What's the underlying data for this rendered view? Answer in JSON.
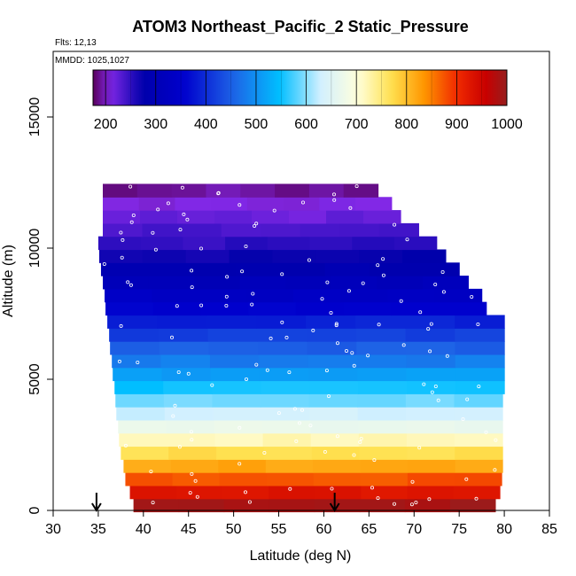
{
  "chart_data": {
    "type": "heatmap",
    "title": "ATOM3 Northeast_Pacific_2 Static_Pressure",
    "flights_label": "Flts: 12,13",
    "dates_label": "MMDD: 1025,1027",
    "xlabel": "Latitude (deg N)",
    "ylabel": "Altitude (m)",
    "xlim": [
      30,
      85
    ],
    "ylim": [
      0,
      17500
    ],
    "x_ticks": [
      30,
      35,
      40,
      45,
      50,
      55,
      60,
      65,
      70,
      75,
      80,
      85
    ],
    "y_ticks": [
      0,
      5000,
      10000,
      15000
    ],
    "colorbar": {
      "min": 175,
      "max": 1000,
      "ticks": [
        200,
        300,
        400,
        500,
        600,
        700,
        800,
        900,
        1000
      ]
    },
    "arrows_latitude": [
      34.8,
      61.2
    ],
    "altitude_bands": [
      {
        "alt": 200,
        "lat_min": 38.9,
        "lat_max": 79.0,
        "pressure": 990
      },
      {
        "alt": 700,
        "lat_min": 38.5,
        "lat_max": 79.5,
        "pressure": 930
      },
      {
        "alt": 1200,
        "lat_min": 38.0,
        "lat_max": 79.7,
        "pressure": 875
      },
      {
        "alt": 1700,
        "lat_min": 37.8,
        "lat_max": 79.8,
        "pressure": 820
      },
      {
        "alt": 2200,
        "lat_min": 37.5,
        "lat_max": 79.8,
        "pressure": 770
      },
      {
        "alt": 2700,
        "lat_min": 37.3,
        "lat_max": 79.8,
        "pressure": 720
      },
      {
        "alt": 3200,
        "lat_min": 37.2,
        "lat_max": 79.8,
        "pressure": 670
      },
      {
        "alt": 3700,
        "lat_min": 37.0,
        "lat_max": 79.8,
        "pressure": 630
      },
      {
        "alt": 4200,
        "lat_min": 36.9,
        "lat_max": 79.8,
        "pressure": 590
      },
      {
        "alt": 4700,
        "lat_min": 36.8,
        "lat_max": 80.0,
        "pressure": 550
      },
      {
        "alt": 5200,
        "lat_min": 36.6,
        "lat_max": 80.0,
        "pressure": 515
      },
      {
        "alt": 5700,
        "lat_min": 36.5,
        "lat_max": 80.0,
        "pressure": 480
      },
      {
        "alt": 6200,
        "lat_min": 36.3,
        "lat_max": 80.0,
        "pressure": 450
      },
      {
        "alt": 6700,
        "lat_min": 36.2,
        "lat_max": 80.0,
        "pressure": 420
      },
      {
        "alt": 7200,
        "lat_min": 36.0,
        "lat_max": 80.0,
        "pressure": 390
      },
      {
        "alt": 7700,
        "lat_min": 35.8,
        "lat_max": 78.0,
        "pressure": 360
      },
      {
        "alt": 8200,
        "lat_min": 35.7,
        "lat_max": 77.5,
        "pressure": 335
      },
      {
        "alt": 8700,
        "lat_min": 35.5,
        "lat_max": 76.0,
        "pressure": 310
      },
      {
        "alt": 9200,
        "lat_min": 35.3,
        "lat_max": 75.0,
        "pressure": 290
      },
      {
        "alt": 9700,
        "lat_min": 35.1,
        "lat_max": 73.5,
        "pressure": 270
      },
      {
        "alt": 10200,
        "lat_min": 35.0,
        "lat_max": 72.5,
        "pressure": 250
      },
      {
        "alt": 10700,
        "lat_min": 35.5,
        "lat_max": 70.5,
        "pressure": 235
      },
      {
        "alt": 11200,
        "lat_min": 35.5,
        "lat_max": 68.5,
        "pressure": 220
      },
      {
        "alt": 11700,
        "lat_min": 35.5,
        "lat_max": 67.5,
        "pressure": 205
      },
      {
        "alt": 12200,
        "lat_min": 35.5,
        "lat_max": 66.0,
        "pressure": 190
      }
    ]
  }
}
